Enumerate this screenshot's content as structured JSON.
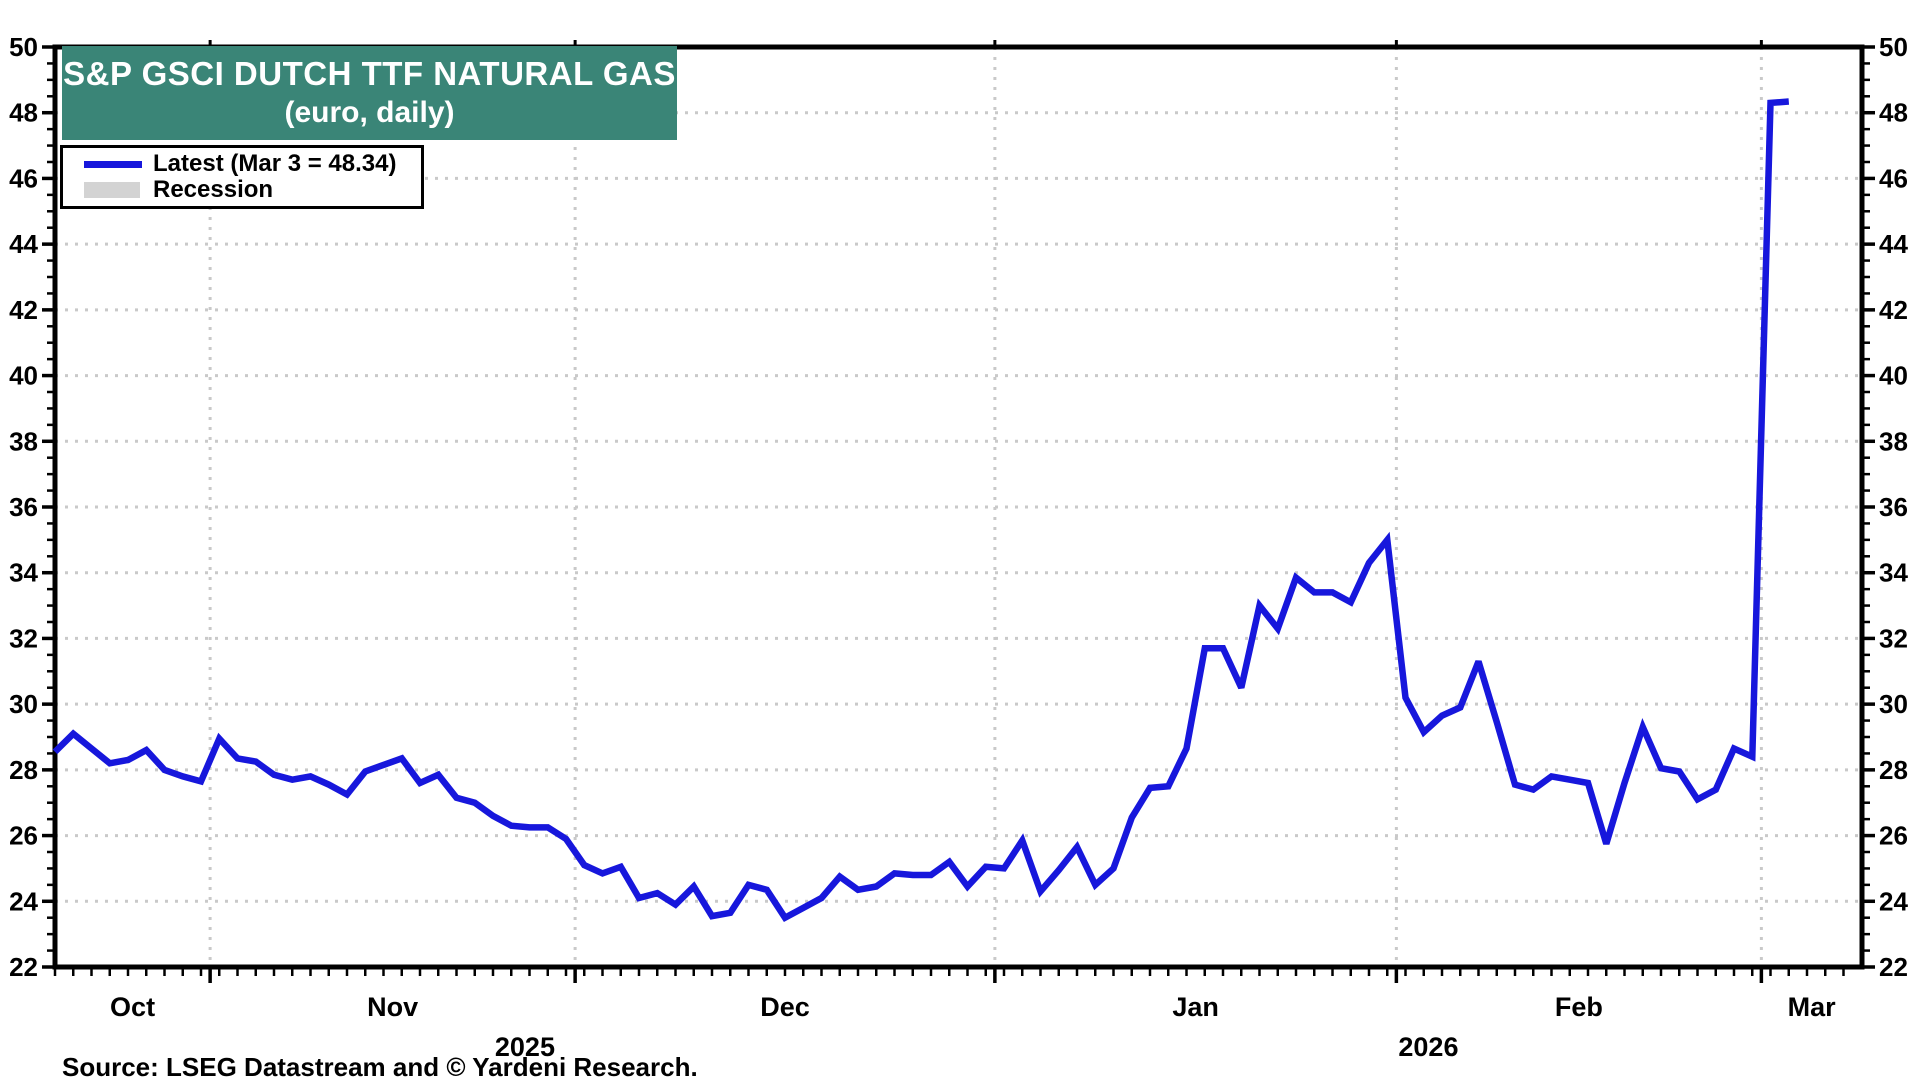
{
  "page": {
    "source_note": "Source: LSEG Datastream and © Yardeni Research."
  },
  "chart": {
    "title_line1": "S&P GSCI DUTCH TTF NATURAL GAS",
    "title_line2": "(euro, daily)",
    "title_bg_color": "#3A8577",
    "legend": [
      {
        "label": "Latest (Mar 3 = 48.34)",
        "swatch": "line",
        "color": "#1717DC"
      },
      {
        "label": "Recession",
        "swatch": "rect",
        "color": "#D3D3D3"
      }
    ]
  },
  "chart_data": {
    "type": "line",
    "title": "S&P GSCI DUTCH TTF NATURAL GAS (euro, daily)",
    "ylabel": "",
    "xlabel": "",
    "ylim": [
      22,
      50
    ],
    "y_major_step": 2,
    "y_minor_step": 0.5,
    "grid": "dotted gray, horizontal at even values, vertical at month starts",
    "legend_position": "top-left",
    "axis_color": "#000000",
    "grid_color": "#C9C9C9",
    "x_axis": {
      "month_names": {
        "01": "Jan",
        "02": "Feb",
        "03": "Mar",
        "10": "Oct",
        "11": "Nov",
        "12": "Dec"
      },
      "month_labels_visible": [
        "Oct",
        "Nov",
        "Dec",
        "Jan",
        "Feb",
        "Mar"
      ],
      "year_labels_visible": [
        "2025",
        "2026"
      ]
    },
    "latest_point": {
      "date": "2026-03-03",
      "value": 48.34
    },
    "series": [
      {
        "name": "Latest (Mar 3 = 48.34)",
        "color": "#1717DC",
        "points": [
          [
            "2025-10-21",
            28.55
          ],
          [
            "2025-10-22",
            29.1
          ],
          [
            "2025-10-23",
            28.65
          ],
          [
            "2025-10-24",
            28.2
          ],
          [
            "2025-10-27",
            28.3
          ],
          [
            "2025-10-28",
            28.6
          ],
          [
            "2025-10-29",
            28.0
          ],
          [
            "2025-10-30",
            27.8
          ],
          [
            "2025-10-31",
            27.65
          ],
          [
            "2025-11-03",
            28.95
          ],
          [
            "2025-11-04",
            28.35
          ],
          [
            "2025-11-05",
            28.25
          ],
          [
            "2025-11-06",
            27.85
          ],
          [
            "2025-11-07",
            27.7
          ],
          [
            "2025-11-10",
            27.8
          ],
          [
            "2025-11-11",
            27.55
          ],
          [
            "2025-11-12",
            27.25
          ],
          [
            "2025-11-13",
            27.95
          ],
          [
            "2025-11-14",
            28.15
          ],
          [
            "2025-11-17",
            28.35
          ],
          [
            "2025-11-18",
            27.6
          ],
          [
            "2025-11-19",
            27.85
          ],
          [
            "2025-11-20",
            27.15
          ],
          [
            "2025-11-21",
            27.0
          ],
          [
            "2025-11-24",
            26.6
          ],
          [
            "2025-11-25",
            26.3
          ],
          [
            "2025-11-26",
            26.25
          ],
          [
            "2025-11-27",
            26.25
          ],
          [
            "2025-11-28",
            25.9
          ],
          [
            "2025-12-01",
            25.1
          ],
          [
            "2025-12-02",
            24.85
          ],
          [
            "2025-12-03",
            25.05
          ],
          [
            "2025-12-04",
            24.1
          ],
          [
            "2025-12-05",
            24.25
          ],
          [
            "2025-12-08",
            23.9
          ],
          [
            "2025-12-09",
            24.45
          ],
          [
            "2025-12-10",
            23.55
          ],
          [
            "2025-12-11",
            23.65
          ],
          [
            "2025-12-12",
            24.5
          ],
          [
            "2025-12-15",
            24.35
          ],
          [
            "2025-12-16",
            23.5
          ],
          [
            "2025-12-17",
            23.8
          ],
          [
            "2025-12-18",
            24.1
          ],
          [
            "2025-12-19",
            24.75
          ],
          [
            "2025-12-22",
            24.35
          ],
          [
            "2025-12-23",
            24.45
          ],
          [
            "2025-12-24",
            24.85
          ],
          [
            "2025-12-25",
            24.8
          ],
          [
            "2025-12-26",
            24.8
          ],
          [
            "2025-12-29",
            25.2
          ],
          [
            "2025-12-30",
            24.45
          ],
          [
            "2025-12-31",
            25.05
          ],
          [
            "2026-01-01",
            25.0
          ],
          [
            "2026-01-02",
            25.85
          ],
          [
            "2026-01-05",
            24.3
          ],
          [
            "2026-01-06",
            24.95
          ],
          [
            "2026-01-07",
            25.65
          ],
          [
            "2026-01-08",
            24.5
          ],
          [
            "2026-01-09",
            25.0
          ],
          [
            "2026-01-12",
            26.55
          ],
          [
            "2026-01-13",
            27.45
          ],
          [
            "2026-01-14",
            27.5
          ],
          [
            "2026-01-15",
            28.65
          ],
          [
            "2026-01-16",
            31.7
          ],
          [
            "2026-01-19",
            31.7
          ],
          [
            "2026-01-20",
            30.5
          ],
          [
            "2026-01-21",
            33.0
          ],
          [
            "2026-01-22",
            32.3
          ],
          [
            "2026-01-23",
            33.85
          ],
          [
            "2026-01-26",
            33.4
          ],
          [
            "2026-01-27",
            33.4
          ],
          [
            "2026-01-28",
            33.1
          ],
          [
            "2026-01-29",
            34.3
          ],
          [
            "2026-01-30",
            35.0
          ],
          [
            "2026-02-02",
            30.2
          ],
          [
            "2026-02-03",
            29.15
          ],
          [
            "2026-02-04",
            29.65
          ],
          [
            "2026-02-05",
            29.9
          ],
          [
            "2026-02-06",
            31.3
          ],
          [
            "2026-02-09",
            29.45
          ],
          [
            "2026-02-10",
            27.55
          ],
          [
            "2026-02-11",
            27.4
          ],
          [
            "2026-02-12",
            27.8
          ],
          [
            "2026-02-13",
            27.7
          ],
          [
            "2026-02-16",
            27.6
          ],
          [
            "2026-02-17",
            25.75
          ],
          [
            "2026-02-18",
            27.6
          ],
          [
            "2026-02-19",
            29.3
          ],
          [
            "2026-02-20",
            28.05
          ],
          [
            "2026-02-23",
            27.95
          ],
          [
            "2026-02-24",
            27.1
          ],
          [
            "2026-02-25",
            27.4
          ],
          [
            "2026-02-26",
            28.65
          ],
          [
            "2026-02-27",
            28.4
          ],
          [
            "2026-03-02",
            48.3
          ],
          [
            "2026-03-03",
            48.34
          ]
        ]
      }
    ]
  }
}
